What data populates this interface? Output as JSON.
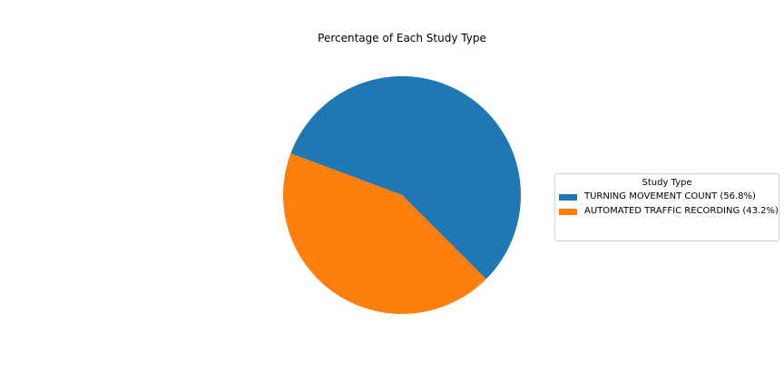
{
  "chart_data": {
    "type": "pie",
    "title": "Percentage of Each Study Type",
    "legend_title": "Study Type",
    "legend_position": "right",
    "categories": [
      "TURNING MOVEMENT COUNT",
      "AUTOMATED TRAFFIC RECORDING"
    ],
    "values": [
      56.8,
      43.2
    ],
    "legend_labels": [
      "TURNING MOVEMENT COUNT (56.8%)",
      "AUTOMATED TRAFFIC RECORDING (43.2%)"
    ],
    "colors": [
      "#1f77b4",
      "#ff7f0e"
    ]
  }
}
